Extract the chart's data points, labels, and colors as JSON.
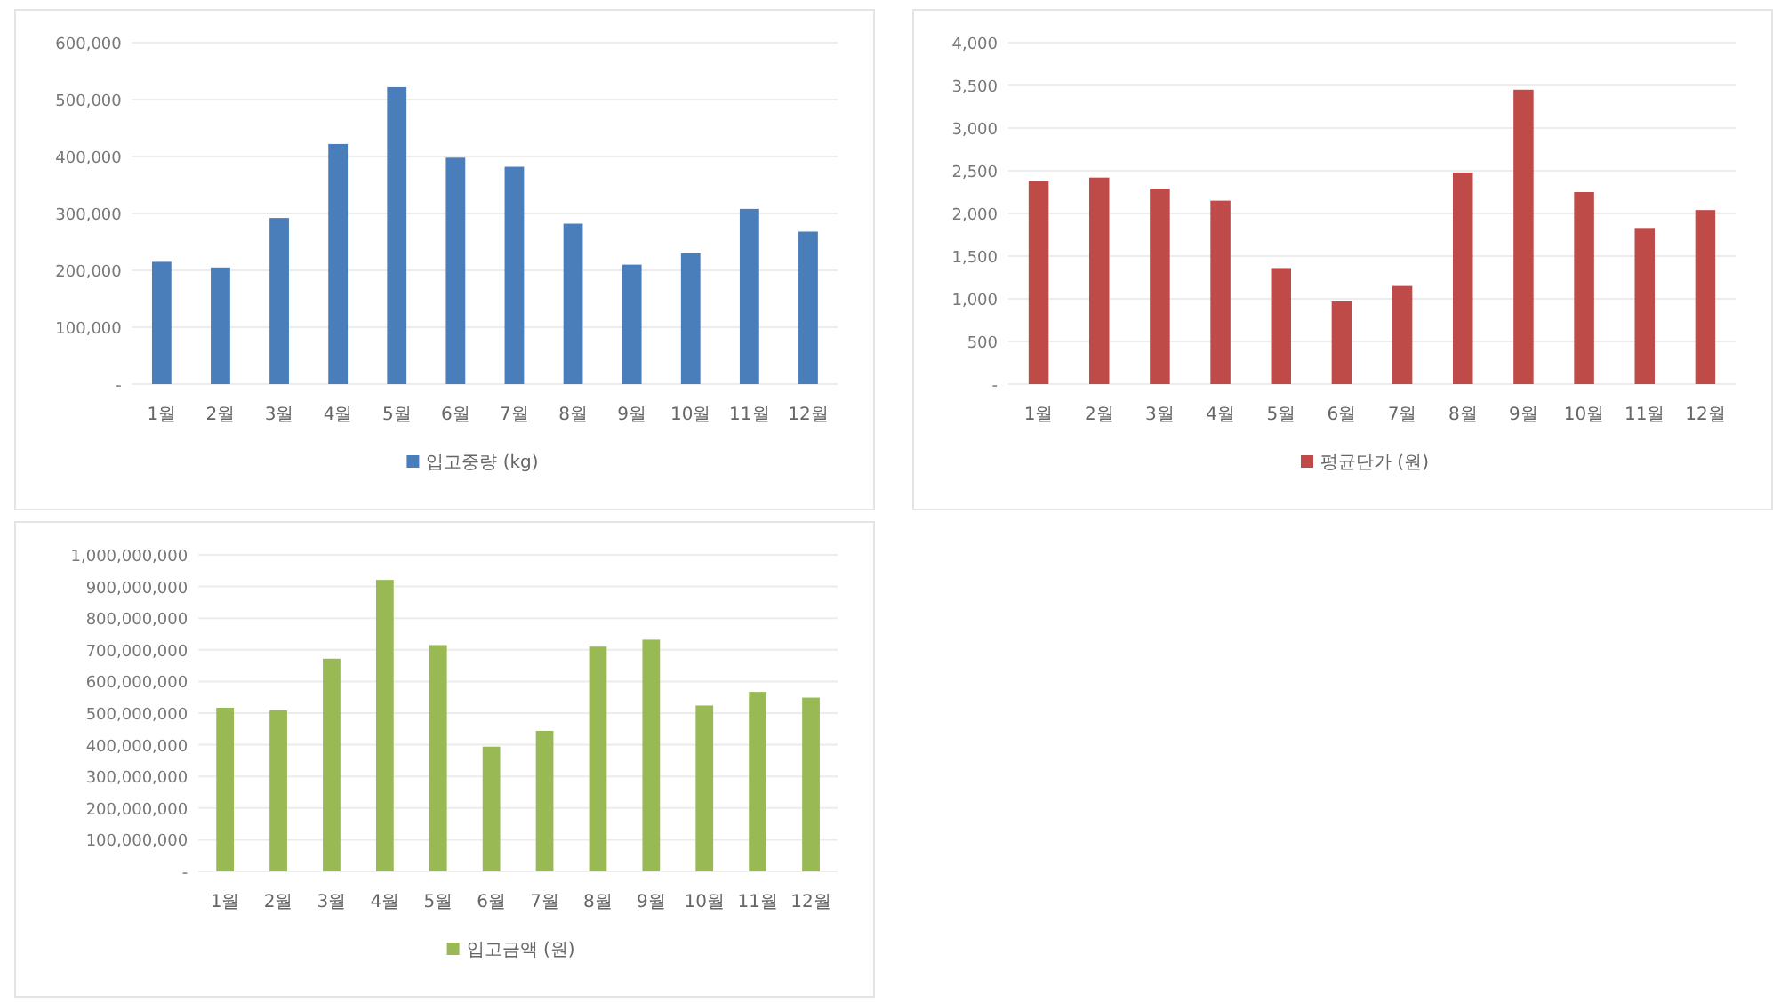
{
  "chart_data": [
    {
      "type": "bar",
      "categories": [
        "1월",
        "2월",
        "3월",
        "4월",
        "5월",
        "6월",
        "7월",
        "8월",
        "9월",
        "10월",
        "11월",
        "12월"
      ],
      "series": [
        {
          "name": "입고중량 (kg)",
          "color": "#4a7ebb",
          "values": [
            215000,
            205000,
            292000,
            422000,
            522000,
            398000,
            382000,
            282000,
            210000,
            230000,
            308000,
            268000
          ]
        }
      ],
      "ylim": [
        0,
        600000
      ],
      "yticks": [
        {
          "value": 0,
          "label": "-"
        },
        {
          "value": 100000,
          "label": "100,000"
        },
        {
          "value": 200000,
          "label": "200,000"
        },
        {
          "value": 300000,
          "label": "300,000"
        },
        {
          "value": 400000,
          "label": "400,000"
        },
        {
          "value": 500000,
          "label": "500,000"
        },
        {
          "value": 600000,
          "label": "600,000"
        }
      ],
      "grid": "y",
      "legend": "bottom"
    },
    {
      "type": "bar",
      "categories": [
        "1월",
        "2월",
        "3월",
        "4월",
        "5월",
        "6월",
        "7월",
        "8월",
        "9월",
        "10월",
        "11월",
        "12월"
      ],
      "series": [
        {
          "name": "평균단가 (원)",
          "color": "#be4b48",
          "values": [
            2380,
            2420,
            2290,
            2150,
            1360,
            970,
            1150,
            2480,
            3450,
            2250,
            1830,
            2040
          ]
        }
      ],
      "ylim": [
        0,
        4000
      ],
      "yticks": [
        {
          "value": 0,
          "label": "-"
        },
        {
          "value": 500,
          "label": "500"
        },
        {
          "value": 1000,
          "label": "1,000"
        },
        {
          "value": 1500,
          "label": "1,500"
        },
        {
          "value": 2000,
          "label": "2,000"
        },
        {
          "value": 2500,
          "label": "2,500"
        },
        {
          "value": 3000,
          "label": "3,000"
        },
        {
          "value": 3500,
          "label": "3,500"
        },
        {
          "value": 4000,
          "label": "4,000"
        }
      ],
      "grid": "y",
      "legend": "bottom"
    },
    {
      "type": "bar",
      "categories": [
        "1월",
        "2월",
        "3월",
        "4월",
        "5월",
        "6월",
        "7월",
        "8월",
        "9월",
        "10월",
        "11월",
        "12월"
      ],
      "series": [
        {
          "name": "입고금액 (원)",
          "color": "#98b954",
          "values": [
            517000000,
            509000000,
            672000000,
            921000000,
            715000000,
            394000000,
            444000000,
            710000000,
            732000000,
            524000000,
            567000000,
            549000000
          ]
        }
      ],
      "ylim": [
        0,
        1000000000
      ],
      "yticks": [
        {
          "value": 0,
          "label": "-"
        },
        {
          "value": 100000000,
          "label": "100,000,000"
        },
        {
          "value": 200000000,
          "label": "200,000,000"
        },
        {
          "value": 300000000,
          "label": "300,000,000"
        },
        {
          "value": 400000000,
          "label": "400,000,000"
        },
        {
          "value": 500000000,
          "label": "500,000,000"
        },
        {
          "value": 600000000,
          "label": "600,000,000"
        },
        {
          "value": 700000000,
          "label": "700,000,000"
        },
        {
          "value": 800000000,
          "label": "800,000,000"
        },
        {
          "value": 900000000,
          "label": "900,000,000"
        },
        {
          "value": 1000000000,
          "label": "1,000,000,000"
        }
      ],
      "grid": "y",
      "legend": "bottom"
    }
  ]
}
